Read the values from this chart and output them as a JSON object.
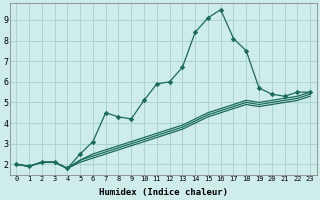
{
  "xlabel": "Humidex (Indice chaleur)",
  "bg_color": "#ceecea",
  "line_color": "#1a6b5a",
  "grid_color": "#aad4d0",
  "xlim": [
    -0.5,
    23.5
  ],
  "ylim": [
    1.5,
    9.8
  ],
  "xticks": [
    0,
    1,
    2,
    3,
    4,
    5,
    6,
    7,
    8,
    9,
    10,
    11,
    12,
    13,
    14,
    15,
    16,
    17,
    18,
    19,
    20,
    21,
    22,
    23
  ],
  "yticks": [
    2,
    3,
    4,
    5,
    6,
    7,
    8,
    9
  ],
  "series_main": [
    2.0,
    1.9,
    2.1,
    2.1,
    1.8,
    2.5,
    3.1,
    4.5,
    4.3,
    4.2,
    5.1,
    5.9,
    6.0,
    6.7,
    8.4,
    9.1,
    9.5,
    8.1,
    7.5,
    5.7,
    5.4,
    5.3,
    5.5,
    5.5
  ],
  "series_flat": [
    [
      2.0,
      1.9,
      2.1,
      2.1,
      1.8,
      2.2,
      2.5,
      2.7,
      2.9,
      3.1,
      3.3,
      3.5,
      3.7,
      3.9,
      4.2,
      4.5,
      4.7,
      4.9,
      5.1,
      5.0,
      5.1,
      5.2,
      5.3,
      5.5
    ],
    [
      2.0,
      1.9,
      2.1,
      2.1,
      1.8,
      2.2,
      2.4,
      2.6,
      2.8,
      3.0,
      3.2,
      3.4,
      3.6,
      3.8,
      4.1,
      4.4,
      4.6,
      4.8,
      5.0,
      4.9,
      5.0,
      5.1,
      5.2,
      5.4
    ],
    [
      2.0,
      1.9,
      2.1,
      2.1,
      1.8,
      2.1,
      2.3,
      2.5,
      2.7,
      2.9,
      3.1,
      3.3,
      3.5,
      3.7,
      4.0,
      4.3,
      4.5,
      4.7,
      4.9,
      4.8,
      4.9,
      5.0,
      5.1,
      5.3
    ]
  ],
  "markersize": 2.8,
  "linewidth": 0.9,
  "linewidth_flat": 0.9
}
